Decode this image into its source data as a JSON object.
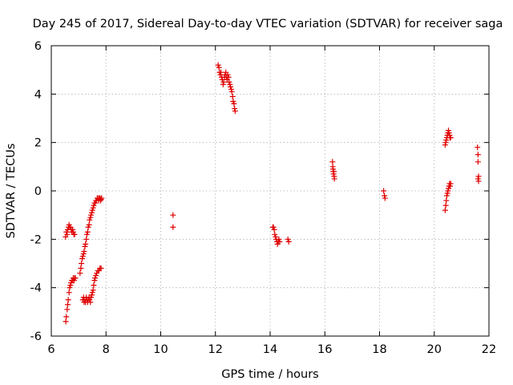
{
  "chart_data": {
    "type": "scatter",
    "title": "Day 245 of 2017, Sidereal Day-to-day VTEC variation (SDTVAR) for receiver saga",
    "xlabel": "GPS time / hours",
    "ylabel": "SDTVAR / TECUs",
    "xlim": [
      6,
      22
    ],
    "ylim": [
      -6,
      6
    ],
    "xticks": [
      6,
      8,
      10,
      12,
      14,
      16,
      18,
      20,
      22
    ],
    "yticks": [
      -6,
      -4,
      -2,
      0,
      2,
      4,
      6
    ],
    "grid": true,
    "marker": "plus",
    "colors": {
      "points": "#e00000"
    },
    "series": [
      {
        "name": "SDTVAR",
        "x": [
          6.52,
          6.55,
          6.58,
          6.6,
          6.63,
          6.65,
          6.68,
          6.7,
          6.73,
          6.75,
          6.78,
          6.8,
          6.83,
          6.85,
          6.53,
          6.55,
          6.58,
          6.6,
          6.62,
          6.65,
          6.67,
          6.7,
          6.72,
          6.75,
          6.78,
          6.8,
          6.83,
          6.85,
          6.88,
          7.05,
          7.08,
          7.1,
          7.13,
          7.15,
          7.18,
          7.2,
          7.23,
          7.25,
          7.28,
          7.3,
          7.33,
          7.35,
          7.38,
          7.4,
          7.43,
          7.45,
          7.48,
          7.5,
          7.53,
          7.55,
          7.58,
          7.6,
          7.63,
          7.65,
          7.68,
          7.7,
          7.73,
          7.75,
          7.78,
          7.8,
          7.82,
          7.84,
          7.15,
          7.18,
          7.2,
          7.23,
          7.25,
          7.28,
          7.3,
          7.33,
          7.35,
          7.38,
          7.4,
          7.43,
          7.45,
          7.48,
          7.5,
          7.53,
          7.55,
          7.58,
          7.6,
          7.63,
          7.66,
          7.7,
          7.74,
          7.78,
          7.82,
          10.45,
          10.45,
          12.1,
          12.13,
          12.15,
          12.18,
          12.2,
          12.23,
          12.25,
          12.28,
          12.3,
          12.33,
          12.35,
          12.38,
          12.4,
          12.43,
          12.45,
          12.48,
          12.5,
          12.53,
          12.55,
          12.58,
          12.6,
          12.63,
          12.65,
          12.68,
          12.7,
          12.72,
          14.1,
          14.12,
          14.15,
          14.17,
          14.2,
          14.22,
          14.25,
          14.27,
          14.3,
          14.32,
          14.35,
          14.65,
          14.68,
          16.28,
          16.29,
          16.3,
          16.31,
          16.32,
          16.33,
          16.34,
          16.35,
          18.15,
          18.18,
          18.2,
          20.4,
          20.42,
          20.44,
          20.46,
          20.48,
          20.5,
          20.52,
          20.54,
          20.56,
          20.58,
          20.6,
          20.4,
          20.42,
          20.44,
          20.46,
          20.48,
          20.5,
          20.52,
          20.54,
          20.56,
          20.58,
          20.6,
          21.58,
          21.6,
          21.6,
          21.62,
          21.6,
          21.62
        ],
        "y": [
          -1.9,
          -1.7,
          -1.8,
          -1.6,
          -1.5,
          -1.4,
          -1.5,
          -1.5,
          -1.6,
          -1.7,
          -1.6,
          -1.7,
          -1.8,
          -1.8,
          -5.4,
          -5.2,
          -4.9,
          -4.7,
          -4.5,
          -4.2,
          -4.0,
          -3.9,
          -3.8,
          -3.7,
          -3.7,
          -3.6,
          -3.7,
          -3.6,
          -3.6,
          -3.4,
          -3.2,
          -3.0,
          -2.8,
          -2.7,
          -2.6,
          -2.5,
          -2.3,
          -2.2,
          -2.0,
          -1.8,
          -1.7,
          -1.5,
          -1.4,
          -1.2,
          -1.1,
          -1.0,
          -0.9,
          -0.8,
          -0.7,
          -0.6,
          -0.5,
          -0.5,
          -0.4,
          -0.4,
          -0.3,
          -0.3,
          -0.4,
          -0.3,
          -0.3,
          -0.4,
          -0.35,
          -0.3,
          -4.5,
          -4.4,
          -4.6,
          -4.5,
          -4.6,
          -4.4,
          -4.5,
          -4.6,
          -4.5,
          -4.4,
          -4.5,
          -4.6,
          -4.4,
          -4.3,
          -4.2,
          -4.1,
          -3.9,
          -3.7,
          -3.6,
          -3.5,
          -3.4,
          -3.3,
          -3.3,
          -3.2,
          -3.2,
          -1.0,
          -1.5,
          5.2,
          5.1,
          4.9,
          4.8,
          4.9,
          4.7,
          4.6,
          4.4,
          4.5,
          4.7,
          4.8,
          4.9,
          4.7,
          4.6,
          4.8,
          4.7,
          4.5,
          4.4,
          4.3,
          4.2,
          4.1,
          3.9,
          3.7,
          3.6,
          3.4,
          3.3,
          -1.5,
          -1.5,
          -1.6,
          -1.8,
          -1.9,
          -2.0,
          -2.1,
          -2.2,
          -2.1,
          -2.0,
          -2.1,
          -2.0,
          -2.1,
          1.2,
          1.0,
          0.9,
          0.8,
          0.7,
          0.8,
          0.6,
          0.5,
          0.0,
          -0.2,
          -0.3,
          1.9,
          2.0,
          2.1,
          2.2,
          2.3,
          2.4,
          2.5,
          2.4,
          2.3,
          2.2,
          2.2,
          -0.8,
          -0.6,
          -0.4,
          -0.2,
          -0.1,
          0.0,
          0.1,
          0.2,
          0.3,
          0.2,
          0.3,
          1.8,
          1.5,
          1.2,
          0.6,
          0.5,
          0.4
        ]
      }
    ]
  }
}
